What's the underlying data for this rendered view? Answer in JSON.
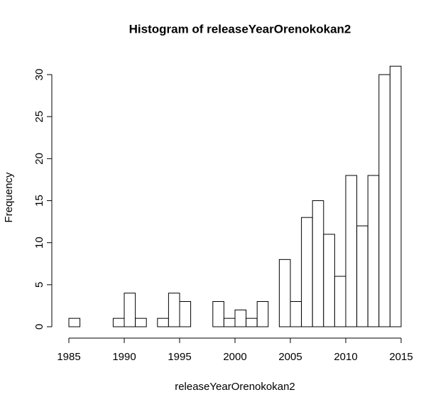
{
  "chart_data": {
    "type": "histogram",
    "title": "Histogram of releaseYearOrenokokan2",
    "x_label": "releaseYearOrenokokan2",
    "y_label": "Frequency",
    "bins": [
      1985,
      1986,
      1987,
      1988,
      1989,
      1990,
      1991,
      1992,
      1993,
      1994,
      1995,
      1996,
      1997,
      1998,
      1999,
      2000,
      2001,
      2002,
      2003,
      2004,
      2005,
      2006,
      2007,
      2008,
      2009,
      2010,
      2011,
      2012,
      2013,
      2014,
      2015
    ],
    "values": [
      1,
      0,
      0,
      0,
      1,
      4,
      1,
      0,
      1,
      4,
      3,
      0,
      0,
      3,
      1,
      2,
      1,
      3,
      0,
      8,
      3,
      13,
      15,
      11,
      6,
      18,
      12,
      18,
      30,
      31
    ],
    "color": "#ffffff",
    "xlim": [
      1985,
      2015
    ],
    "xticks": [
      1985,
      1990,
      1995,
      2000,
      2005,
      2010,
      2015
    ],
    "ylim": [
      0,
      31
    ],
    "yticks": [
      0,
      5,
      10,
      15,
      20,
      25,
      30
    ]
  }
}
